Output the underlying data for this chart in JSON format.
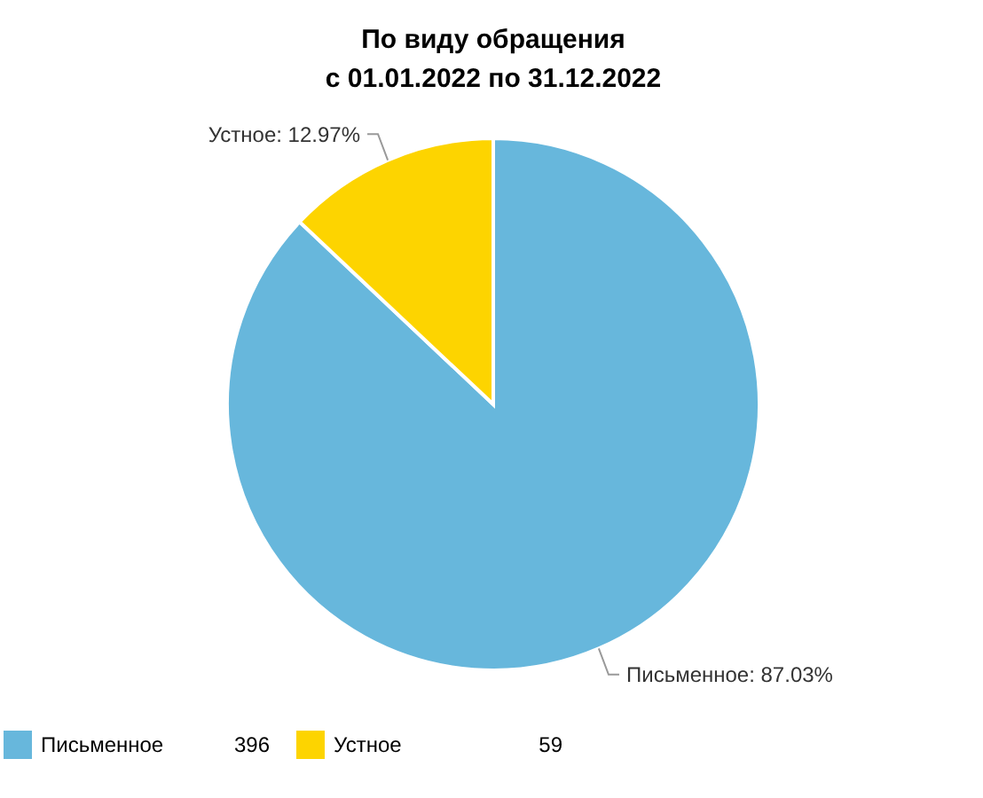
{
  "chart_data": {
    "type": "pie",
    "title": "По виду обращения\nс 01.01.2022 по 31.12.2022",
    "categories": [
      "Письменное",
      "Устное"
    ],
    "values": [
      87.03,
      12.97
    ],
    "value_labels": [
      "Письменное: 87.03%",
      "Устное: 12.97%"
    ],
    "annotations": [
      "396",
      "59"
    ],
    "colors": [
      "#67b7dc",
      "#fdd400"
    ],
    "legend": "bottom"
  }
}
